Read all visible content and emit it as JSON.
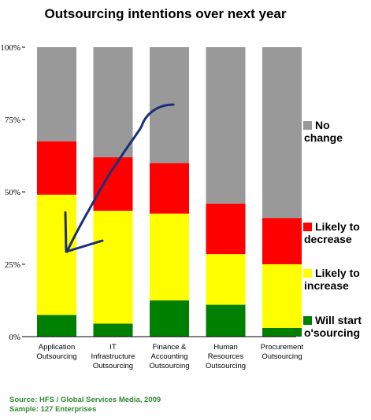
{
  "chart_data": {
    "type": "bar",
    "stacked": true,
    "title": "Outsourcing intentions over next year",
    "categories": [
      [
        "Application",
        "Outsourcing"
      ],
      [
        "IT",
        "Infrastructure",
        "Outsourcing"
      ],
      [
        "Finance &",
        "Accounting",
        "Outsourcing"
      ],
      [
        "Human",
        "Resources",
        "Outsourcing"
      ],
      [
        "Procurement",
        "Outsourcing"
      ]
    ],
    "yticks": [
      "0%",
      "25%",
      "50%",
      "75%",
      "100%"
    ],
    "ylim": [
      0,
      100
    ],
    "series": [
      {
        "name": [
          "Will start",
          "o'sourcing"
        ],
        "color": "#008000",
        "values": [
          7.5,
          4.5,
          12.5,
          11,
          3
        ]
      },
      {
        "name": [
          "Likely to",
          "increase"
        ],
        "color": "#ffff00",
        "values": [
          41.5,
          39,
          30,
          17.5,
          22
        ]
      },
      {
        "name": [
          "Likely to",
          "decrease"
        ],
        "color": "#ff0000",
        "values": [
          18.5,
          18.5,
          17.5,
          17.5,
          16
        ]
      },
      {
        "name": [
          "No",
          "change"
        ],
        "color": "#999999",
        "values": [
          32.5,
          38,
          40,
          54,
          59
        ]
      }
    ],
    "legend_position": "right"
  },
  "source": {
    "line1": "Source:  HFS / Global Services Media, 2009",
    "line2": "Sample:  127 Enterprises"
  },
  "annotation": {
    "color": "#1a2f7a",
    "description": "hand-drawn arrow"
  }
}
